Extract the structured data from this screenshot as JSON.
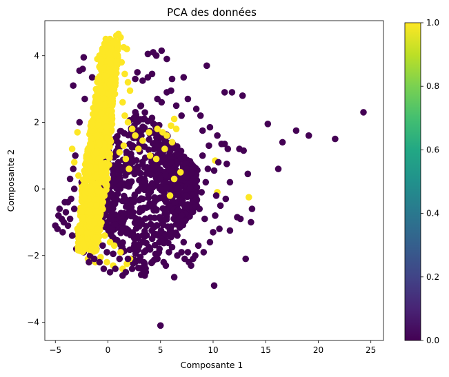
{
  "chart_data": {
    "type": "scatter",
    "title": "PCA des données",
    "xlabel": "Composante 1",
    "ylabel": "Composante 2",
    "xlim": [
      -6,
      26.2
    ],
    "ylim": [
      -4.55,
      5.05
    ],
    "xticks": [
      -5,
      0,
      5,
      10,
      15,
      20,
      25
    ],
    "yticks": [
      -4,
      -2,
      0,
      2,
      4
    ],
    "grid": false,
    "colorbar": {
      "colormap": "viridis",
      "range": [
        0.0,
        1.0
      ],
      "ticks": [
        "0.0",
        "0.2",
        "0.4",
        "0.6",
        "0.8",
        "1.0"
      ]
    },
    "colors": {
      "class_0": "#440154",
      "class_1": "#fde725"
    },
    "series": [
      {
        "class_value": 0,
        "points": [
          [
            -5.0,
            -1.1
          ],
          [
            -4.8,
            -1.2
          ],
          [
            -4.6,
            -0.6
          ],
          [
            -4.7,
            -0.8
          ],
          [
            -4.4,
            -0.9
          ],
          [
            -4.2,
            -1.0
          ],
          [
            -4.0,
            -0.7
          ],
          [
            -3.8,
            -1.1
          ],
          [
            -3.6,
            -0.9
          ],
          [
            -4.3,
            -1.3
          ],
          [
            -3.3,
            3.1
          ],
          [
            -3.2,
            0.0
          ],
          [
            -3.0,
            -1.8
          ],
          [
            -2.7,
            3.55
          ],
          [
            -2.4,
            3.6
          ],
          [
            -2.3,
            3.95
          ],
          [
            -3.2,
            -0.6
          ],
          [
            -2.9,
            -1.4
          ],
          [
            -2.6,
            -1.7
          ],
          [
            -2.5,
            0.2
          ],
          [
            -1.8,
            -2.2
          ],
          [
            -1.7,
            -2.0
          ],
          [
            -1.3,
            -2.1
          ],
          [
            -0.8,
            -2.2
          ],
          [
            -0.4,
            -2.4
          ],
          [
            0.2,
            -2.5
          ],
          [
            0.7,
            -2.4
          ],
          [
            1.4,
            -2.6
          ],
          [
            1.7,
            -2.5
          ],
          [
            2.3,
            -2.4
          ],
          [
            3.5,
            -2.6
          ],
          [
            3.6,
            -2.5
          ],
          [
            5.3,
            -2.2
          ],
          [
            6.3,
            -2.65
          ],
          [
            5.5,
            -2.3
          ],
          [
            6.6,
            -2.0
          ],
          [
            7.3,
            -2.1
          ],
          [
            7.7,
            -2.2
          ],
          [
            8.1,
            -2.1
          ],
          [
            8.3,
            -2.0
          ],
          [
            5.0,
            -4.1
          ],
          [
            10.1,
            -2.9
          ],
          [
            13.1,
            -2.1
          ],
          [
            10.6,
            -1.2
          ],
          [
            12.3,
            -0.85
          ],
          [
            12.6,
            -0.9
          ],
          [
            13.6,
            -1.0
          ],
          [
            13.7,
            -0.6
          ],
          [
            11.6,
            -1.25
          ],
          [
            10.2,
            -0.8
          ],
          [
            5.1,
            4.15
          ],
          [
            4.6,
            4.0
          ],
          [
            4.3,
            4.1
          ],
          [
            3.8,
            4.05
          ],
          [
            5.6,
            3.9
          ],
          [
            4.2,
            3.45
          ],
          [
            3.8,
            3.35
          ],
          [
            3.3,
            3.25
          ],
          [
            2.8,
            3.5
          ],
          [
            2.6,
            3.3
          ],
          [
            6.1,
            3.3
          ],
          [
            6.0,
            2.95
          ],
          [
            7.2,
            3.35
          ],
          [
            5.6,
            2.9
          ],
          [
            5.1,
            2.6
          ],
          [
            4.7,
            2.7
          ],
          [
            9.4,
            3.7
          ],
          [
            7.6,
            2.7
          ],
          [
            6.5,
            2.5
          ],
          [
            7.0,
            2.2
          ],
          [
            8.4,
            2.4
          ],
          [
            8.8,
            2.2
          ],
          [
            9.0,
            1.75
          ],
          [
            9.7,
            1.85
          ],
          [
            10.4,
            1.6
          ],
          [
            10.8,
            1.35
          ],
          [
            11.1,
            1.35
          ],
          [
            11.4,
            1.2
          ],
          [
            12.5,
            1.2
          ],
          [
            12.9,
            1.15
          ],
          [
            11.1,
            2.9
          ],
          [
            11.8,
            2.9
          ],
          [
            12.8,
            2.8
          ],
          [
            13.3,
            0.45
          ],
          [
            15.2,
            1.95
          ],
          [
            16.2,
            0.6
          ],
          [
            16.6,
            1.4
          ],
          [
            17.9,
            1.75
          ],
          [
            19.1,
            1.6
          ],
          [
            21.6,
            1.5
          ],
          [
            24.3,
            2.3
          ],
          [
            9.2,
            -0.9
          ],
          [
            8.7,
            -0.6
          ],
          [
            8.4,
            -0.3
          ],
          [
            8.9,
            -0.1
          ],
          [
            9.3,
            0.2
          ],
          [
            9.5,
            0.6
          ],
          [
            9.0,
            1.0
          ],
          [
            9.6,
            1.3
          ],
          [
            10.5,
            0.8
          ],
          [
            10.3,
            -0.2
          ],
          [
            10.7,
            -0.5
          ],
          [
            11.2,
            -0.3
          ],
          [
            11.6,
            0.2
          ],
          [
            11.3,
            0.75
          ],
          [
            10.1,
            0.55
          ],
          [
            10.0,
            -1.3
          ],
          [
            9.7,
            -1.6
          ],
          [
            9.1,
            -1.9
          ],
          [
            8.6,
            -1.7
          ],
          [
            7.9,
            -2.3
          ],
          [
            7.6,
            -1.9
          ],
          [
            7.2,
            -1.6
          ],
          [
            7.0,
            -1.9
          ],
          [
            6.6,
            -1.4
          ],
          [
            6.1,
            -1.75
          ],
          [
            5.8,
            -1.9
          ],
          [
            4.9,
            -1.8
          ],
          [
            4.7,
            -2.1
          ],
          [
            4.2,
            -2.2
          ],
          [
            3.4,
            -2.2
          ],
          [
            2.6,
            -2.2
          ],
          [
            1.9,
            -2.1
          ],
          [
            1.1,
            -2.1
          ],
          [
            0.5,
            -1.95
          ],
          [
            -0.1,
            -1.9
          ],
          [
            -0.5,
            -1.7
          ],
          [
            -1.1,
            -1.8
          ],
          [
            -2.0,
            -1.5
          ],
          [
            -2.3,
            -1.9
          ],
          [
            -3.4,
            -1.4
          ],
          [
            -3.5,
            -0.3
          ],
          [
            -3.8,
            -0.4
          ],
          [
            -4.1,
            -0.4
          ],
          [
            -3.6,
            0.3
          ],
          [
            -3.3,
            0.6
          ],
          [
            -3.1,
            1.0
          ],
          [
            -2.7,
            2.0
          ],
          [
            -2.2,
            2.7
          ],
          [
            -1.5,
            3.35
          ]
        ]
      },
      {
        "class_value": 1,
        "points": [
          [
            0.6,
            4.45
          ],
          [
            0.8,
            4.6
          ],
          [
            1.0,
            4.65
          ],
          [
            1.2,
            4.55
          ],
          [
            0.2,
            4.5
          ],
          [
            0.0,
            4.35
          ],
          [
            -0.2,
            4.5
          ],
          [
            -0.5,
            4.15
          ],
          [
            -0.8,
            4.0
          ],
          [
            -1.0,
            3.9
          ],
          [
            0.4,
            4.3
          ],
          [
            0.9,
            4.4
          ],
          [
            1.5,
            4.25
          ],
          [
            1.8,
            4.2
          ],
          [
            1.3,
            3.8
          ],
          [
            1.6,
            3.45
          ],
          [
            1.9,
            3.2
          ],
          [
            2.1,
            2.95
          ],
          [
            1.4,
            2.6
          ],
          [
            1.6,
            2.2
          ],
          [
            1.9,
            2.0
          ],
          [
            2.3,
            1.8
          ],
          [
            2.6,
            1.6
          ],
          [
            1.5,
            1.3
          ],
          [
            1.1,
            1.1
          ],
          [
            1.7,
            0.9
          ],
          [
            2.0,
            0.6
          ],
          [
            2.9,
            1.2
          ],
          [
            3.3,
            1.45
          ],
          [
            3.9,
            1.7
          ],
          [
            4.7,
            1.8
          ],
          [
            5.2,
            1.7
          ],
          [
            5.6,
            1.6
          ],
          [
            6.0,
            1.9
          ],
          [
            6.3,
            2.1
          ],
          [
            6.5,
            1.8
          ],
          [
            6.1,
            1.4
          ],
          [
            5.4,
            1.2
          ],
          [
            4.6,
            0.9
          ],
          [
            4.0,
            1.0
          ],
          [
            6.3,
            0.3
          ],
          [
            6.9,
            0.5
          ],
          [
            5.9,
            -0.2
          ],
          [
            10.2,
            0.85
          ],
          [
            10.4,
            -0.1
          ],
          [
            13.4,
            -0.25
          ],
          [
            -2.6,
            -1.5
          ],
          [
            -2.9,
            -1.2
          ],
          [
            -1.4,
            -1.8
          ],
          [
            -0.9,
            -1.6
          ],
          [
            -0.3,
            -1.4
          ],
          [
            0.2,
            -1.6
          ],
          [
            0.6,
            -1.7
          ],
          [
            1.2,
            -1.9
          ],
          [
            1.8,
            -2.25
          ],
          [
            2.1,
            -2.1
          ],
          [
            1.4,
            -2.4
          ],
          [
            0.5,
            -2.3
          ],
          [
            -0.1,
            -2.2
          ],
          [
            -0.7,
            -2.05
          ],
          [
            -1.2,
            -2.2
          ],
          [
            -1.9,
            -2.1
          ],
          [
            -2.0,
            -1.1
          ],
          [
            -2.4,
            -0.8
          ],
          [
            -2.1,
            -0.3
          ],
          [
            -2.5,
            0.1
          ],
          [
            -2.8,
            0.4
          ],
          [
            -3.2,
            0.8
          ],
          [
            -3.4,
            1.2
          ],
          [
            -2.9,
            1.7
          ]
        ]
      }
    ]
  }
}
